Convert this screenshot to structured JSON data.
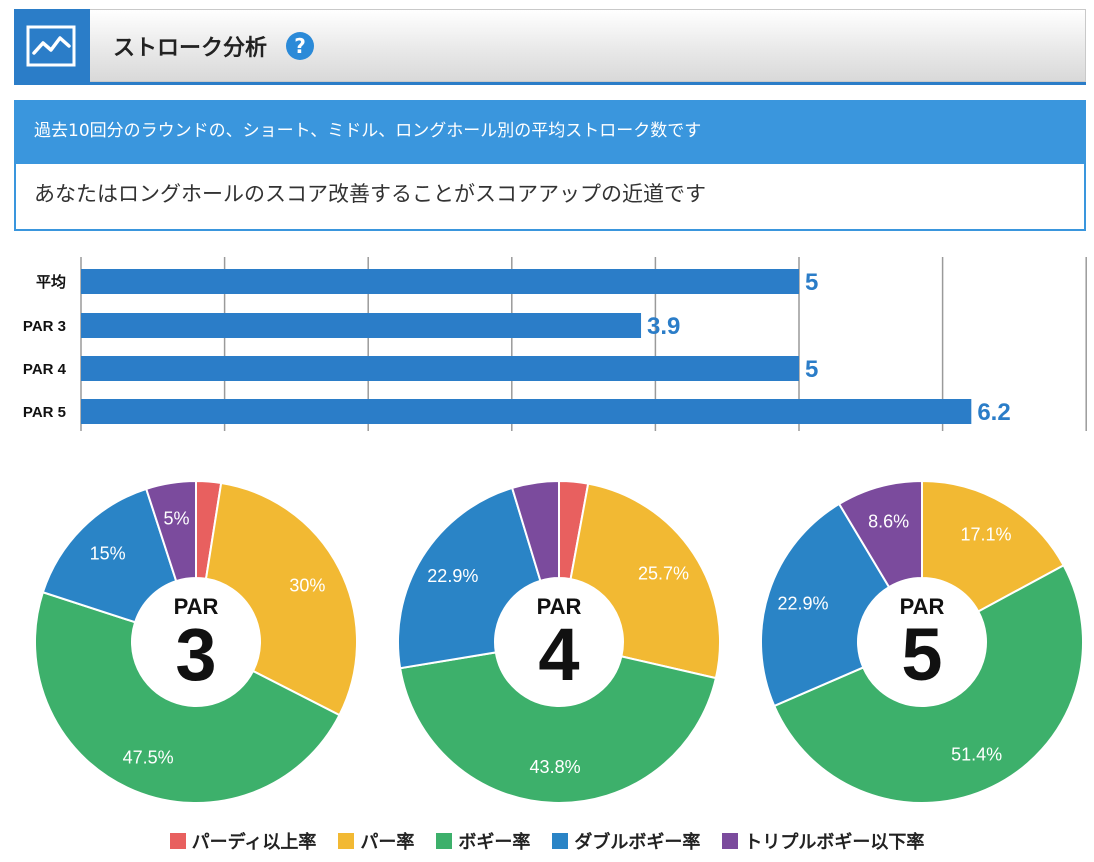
{
  "header": {
    "title": "ストローク分析",
    "help_symbol": "?",
    "icon": "line-chart-icon",
    "help_icon": "question-circle-icon"
  },
  "info": {
    "description": "過去10回分のラウンドの、ショート、ミドル、ロングホール別の平均ストローク数です",
    "advice": "あなたはロングホールのスコア改善することがスコアアップの近道です"
  },
  "colors": {
    "accent": "#2b7dc8",
    "birdie": "#e8605f",
    "par": "#f2b933",
    "bogey": "#3db06b",
    "double": "#2a84c6",
    "triple": "#7b4b9d"
  },
  "chart_data": [
    {
      "type": "bar",
      "orientation": "horizontal",
      "categories": [
        "平均",
        "PAR 3",
        "PAR 4",
        "PAR 5"
      ],
      "values": [
        5,
        3.9,
        5,
        6.2
      ],
      "value_labels": [
        "5",
        "3.9",
        "5",
        "6.2"
      ],
      "xlim": [
        0,
        7
      ],
      "grid": true
    },
    {
      "type": "pie",
      "variant": "donut",
      "center_top": "PAR",
      "center_number": "3",
      "slices": [
        {
          "series": "パーディ以上率",
          "value": 2.5,
          "label": ""
        },
        {
          "series": "パー率",
          "value": 30,
          "label": "30%"
        },
        {
          "series": "ボギー率",
          "value": 47.5,
          "label": "47.5%"
        },
        {
          "series": "ダブルボギー率",
          "value": 15,
          "label": "15%"
        },
        {
          "series": "トリプルボギー以下率",
          "value": 5,
          "label": "5%"
        }
      ]
    },
    {
      "type": "pie",
      "variant": "donut",
      "center_top": "PAR",
      "center_number": "4",
      "slices": [
        {
          "series": "パーディ以上率",
          "value": 2.9,
          "label": ""
        },
        {
          "series": "パー率",
          "value": 25.7,
          "label": "25.7%"
        },
        {
          "series": "ボギー率",
          "value": 43.8,
          "label": "43.8%"
        },
        {
          "series": "ダブルボギー率",
          "value": 22.9,
          "label": "22.9%"
        },
        {
          "series": "トリプルボギー以下率",
          "value": 4.7,
          "label": ""
        }
      ]
    },
    {
      "type": "pie",
      "variant": "donut",
      "center_top": "PAR",
      "center_number": "5",
      "slices": [
        {
          "series": "パーディ以上率",
          "value": 0,
          "label": ""
        },
        {
          "series": "パー率",
          "value": 17.1,
          "label": "17.1%"
        },
        {
          "series": "ボギー率",
          "value": 51.4,
          "label": "51.4%"
        },
        {
          "series": "ダブルボギー率",
          "value": 22.9,
          "label": "22.9%"
        },
        {
          "series": "トリプルボギー以下率",
          "value": 8.6,
          "label": "8.6%"
        }
      ]
    }
  ],
  "legend": {
    "placement": "bottom",
    "items": [
      {
        "label": "パーディ以上率",
        "color": "#e8605f"
      },
      {
        "label": "パー率",
        "color": "#f2b933"
      },
      {
        "label": "ボギー率",
        "color": "#3db06b"
      },
      {
        "label": "ダブルボギー率",
        "color": "#2a84c6"
      },
      {
        "label": "トリプルボギー以下率",
        "color": "#7b4b9d"
      }
    ]
  }
}
